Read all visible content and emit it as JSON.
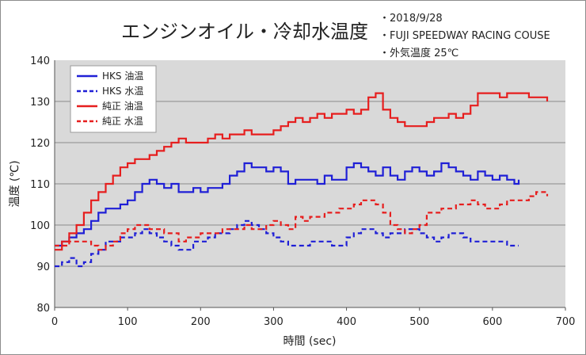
{
  "chart_data": {
    "type": "line",
    "title": "エンジンオイル・冷却水温度",
    "notes": [
      "・2018/9/28",
      "・FUJI SPEEDWAY RACING COUSE",
      "・外気温度 25℃"
    ],
    "xlabel": "時間 (sec)",
    "ylabel": "温度 (℃)",
    "xlim": [
      0,
      700
    ],
    "ylim": [
      80,
      140
    ],
    "xticks": [
      0,
      100,
      200,
      300,
      400,
      500,
      600,
      700
    ],
    "yticks": [
      80,
      90,
      100,
      110,
      120,
      130,
      140
    ],
    "grid": true,
    "legend_position": "top-left",
    "series": [
      {
        "name": "HKS 油温",
        "color": "#1f1fd6",
        "dash": "solid",
        "x": [
          0,
          10,
          20,
          30,
          40,
          50,
          60,
          70,
          80,
          90,
          100,
          110,
          120,
          130,
          140,
          150,
          160,
          170,
          180,
          190,
          200,
          210,
          220,
          230,
          240,
          250,
          260,
          270,
          280,
          290,
          300,
          310,
          320,
          330,
          340,
          350,
          360,
          370,
          380,
          390,
          400,
          410,
          420,
          430,
          440,
          450,
          460,
          470,
          480,
          490,
          500,
          510,
          520,
          530,
          540,
          550,
          560,
          570,
          580,
          590,
          600,
          610,
          620,
          630,
          636
        ],
        "y": [
          95,
          96,
          97,
          98,
          99,
          101,
          103,
          104,
          104,
          105,
          106,
          108,
          110,
          111,
          110,
          109,
          110,
          108,
          108,
          109,
          108,
          109,
          109,
          110,
          112,
          113,
          115,
          114,
          114,
          113,
          114,
          113,
          110,
          111,
          111,
          111,
          110,
          112,
          111,
          111,
          114,
          115,
          114,
          113,
          112,
          114,
          112,
          111,
          113,
          114,
          113,
          112,
          113,
          115,
          114,
          113,
          112,
          111,
          113,
          112,
          111,
          112,
          111,
          110,
          111
        ]
      },
      {
        "name": "HKS 水温",
        "color": "#1f1fd6",
        "dash": "dashed",
        "x": [
          0,
          10,
          20,
          30,
          40,
          50,
          60,
          70,
          80,
          90,
          100,
          110,
          120,
          130,
          140,
          150,
          160,
          170,
          180,
          190,
          200,
          210,
          220,
          230,
          240,
          250,
          260,
          270,
          280,
          290,
          300,
          310,
          320,
          330,
          340,
          350,
          360,
          370,
          380,
          390,
          400,
          410,
          420,
          430,
          440,
          450,
          460,
          470,
          480,
          490,
          500,
          510,
          520,
          530,
          540,
          550,
          560,
          570,
          580,
          590,
          600,
          610,
          620,
          630,
          636
        ],
        "y": [
          90,
          91,
          92,
          90,
          91,
          93,
          94,
          96,
          96,
          97,
          97,
          98,
          99,
          98,
          97,
          96,
          95,
          94,
          94,
          96,
          96,
          97,
          98,
          98,
          99,
          100,
          101,
          100,
          99,
          98,
          97,
          96,
          95,
          95,
          95,
          96,
          96,
          96,
          95,
          95,
          97,
          98,
          99,
          99,
          98,
          97,
          98,
          98,
          99,
          99,
          98,
          97,
          96,
          97,
          98,
          98,
          97,
          96,
          96,
          96,
          96,
          96,
          95,
          95,
          95
        ]
      },
      {
        "name": "純正 油温",
        "color": "#e61e1e",
        "dash": "solid",
        "x": [
          0,
          10,
          20,
          30,
          40,
          50,
          60,
          70,
          80,
          90,
          100,
          110,
          120,
          130,
          140,
          150,
          160,
          170,
          180,
          190,
          200,
          210,
          220,
          230,
          240,
          250,
          260,
          270,
          280,
          290,
          300,
          310,
          320,
          330,
          340,
          350,
          360,
          370,
          380,
          390,
          400,
          410,
          420,
          430,
          440,
          450,
          460,
          470,
          480,
          490,
          500,
          510,
          520,
          530,
          540,
          550,
          560,
          570,
          580,
          590,
          600,
          610,
          620,
          630,
          640,
          650,
          660,
          670,
          675
        ],
        "y": [
          94,
          96,
          98,
          100,
          103,
          106,
          108,
          110,
          112,
          114,
          115,
          116,
          116,
          117,
          118,
          119,
          120,
          121,
          120,
          120,
          120,
          121,
          122,
          121,
          122,
          122,
          123,
          122,
          122,
          122,
          123,
          124,
          125,
          126,
          125,
          126,
          127,
          126,
          127,
          127,
          128,
          127,
          128,
          131,
          132,
          128,
          126,
          125,
          124,
          124,
          124,
          125,
          126,
          126,
          127,
          126,
          127,
          129,
          132,
          132,
          132,
          131,
          132,
          132,
          132,
          131,
          131,
          131,
          130
        ]
      },
      {
        "name": "純正 水温",
        "color": "#e61e1e",
        "dash": "dashed",
        "x": [
          0,
          10,
          20,
          30,
          40,
          50,
          60,
          70,
          80,
          90,
          100,
          110,
          120,
          130,
          140,
          150,
          160,
          170,
          180,
          190,
          200,
          210,
          220,
          230,
          240,
          250,
          260,
          270,
          280,
          290,
          300,
          310,
          320,
          330,
          340,
          350,
          360,
          370,
          380,
          390,
          400,
          410,
          420,
          430,
          440,
          450,
          460,
          470,
          480,
          490,
          500,
          510,
          520,
          530,
          540,
          550,
          560,
          570,
          580,
          590,
          600,
          610,
          620,
          630,
          640,
          650,
          660,
          670,
          675
        ],
        "y": [
          95,
          95,
          96,
          96,
          96,
          95,
          94,
          95,
          96,
          98,
          99,
          100,
          100,
          99,
          99,
          98,
          98,
          96,
          97,
          97,
          98,
          98,
          98,
          99,
          99,
          99,
          100,
          99,
          99,
          100,
          101,
          100,
          99,
          102,
          101,
          102,
          102,
          103,
          103,
          104,
          104,
          105,
          106,
          106,
          105,
          103,
          100,
          99,
          98,
          99,
          100,
          103,
          103,
          104,
          104,
          105,
          105,
          106,
          105,
          104,
          104,
          105,
          106,
          106,
          106,
          107,
          108,
          108,
          107
        ]
      }
    ]
  }
}
